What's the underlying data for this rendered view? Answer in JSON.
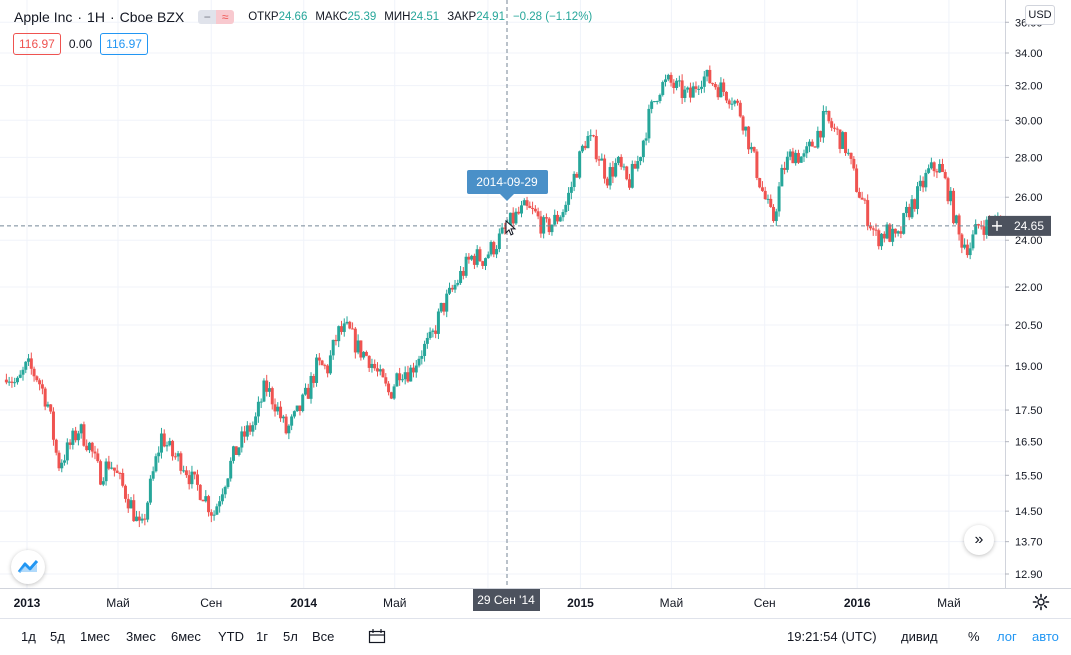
{
  "header": {
    "symbol": "Apple Inc",
    "interval": "1H",
    "exchange": "Cboe BZX",
    "open_label": "ОТКР",
    "open_value": "24.66",
    "high_label": "МАКС",
    "high_value": "25.39",
    "low_label": "МИН",
    "low_value": "24.51",
    "close_label": "ЗАКР",
    "close_value": "24.91",
    "change": "−0.28 (−1.12%)",
    "sell_price": "116.97",
    "spread": "0.00",
    "buy_price": "116.97",
    "currency": "USD"
  },
  "crosshair": {
    "date_tooltip": "2014-09-29",
    "time_label": "29 Сен '14",
    "price_label": "24.65",
    "price_value": 24.65
  },
  "bottom_toolbar": {
    "ranges": [
      "1д",
      "5д",
      "1мес",
      "3мес",
      "6мес",
      "YTD",
      "1г",
      "5л",
      "Все"
    ],
    "clock": "19:21:54 (UTC)",
    "divid": "дивид",
    "percent": "%",
    "log": "лог",
    "auto": "авто"
  },
  "icons": {
    "compare": "compare-pill-icon",
    "calendar": "goto-date-icon",
    "settings": "gear-icon",
    "scroll": "scroll-to-realtime-icon",
    "logo": "tradingview-logo-icon"
  },
  "colors": {
    "up": "#26a69a",
    "down": "#ef5350",
    "accent": "#2196f3",
    "crosshair_label": "#4a90c8"
  },
  "chart_data": {
    "type": "candlestick",
    "scale": "log",
    "y_ticks": [
      12.9,
      13.7,
      14.5,
      15.5,
      16.5,
      17.5,
      19.0,
      20.5,
      22.0,
      24.0,
      26.0,
      28.0,
      30.0,
      32.0,
      34.0,
      36.0
    ],
    "y_tick_labels": [
      "12.90",
      "13.70",
      "14.50",
      "15.50",
      "16.50",
      "17.50",
      "19.00",
      "20.50",
      "22.00",
      "24.00",
      "26.00",
      "28.00",
      "30.00",
      "32.00",
      "34.00",
      "36.00"
    ],
    "x_ticks": [
      "2013-01",
      "2013-05",
      "2013-09",
      "2014-01",
      "2014-05",
      "2014-09",
      "2015-01",
      "2015-05",
      "2015-09",
      "2016-01",
      "2016-05"
    ],
    "x_tick_labels": [
      "2013",
      "Май",
      "Сен",
      "2014",
      "Май",
      "Сен",
      "2015",
      "Май",
      "Сен",
      "2016",
      "Май"
    ],
    "x_tick_bold": [
      true,
      false,
      false,
      true,
      false,
      false,
      true,
      false,
      false,
      true,
      false
    ],
    "closes": [
      18.8,
      18.3,
      19.0,
      18.6,
      17.7,
      15.8,
      16.3,
      16.9,
      16.4,
      15.5,
      15.9,
      15.3,
      14.7,
      13.9,
      15.3,
      16.7,
      16.1,
      15.9,
      15.3,
      15.0,
      14.4,
      15.3,
      16.1,
      16.7,
      17.1,
      18.3,
      17.7,
      16.8,
      17.3,
      18.0,
      19.0,
      18.9,
      20.2,
      20.3,
      19.6,
      19.3,
      18.6,
      18.0,
      18.9,
      18.8,
      19.5,
      19.9,
      21.1,
      21.8,
      22.6,
      23.3,
      23.2,
      23.7,
      24.3,
      25.0,
      25.4,
      25.2,
      24.5,
      24.9,
      25.6,
      27.3,
      29.1,
      28.4,
      27.0,
      27.7,
      26.6,
      27.8,
      30.1,
      31.9,
      32.2,
      31.7,
      31.3,
      32.6,
      32.3,
      31.8,
      31.4,
      30.3,
      28.2,
      26.3,
      24.8,
      27.4,
      28.3,
      27.9,
      28.9,
      30.1,
      29.4,
      28.6,
      26.7,
      25.3,
      24.1,
      24.4,
      23.9,
      25.3,
      26.1,
      27.2,
      27.6,
      26.2,
      24.1,
      23.7,
      24.8,
      24.6,
      24.9
    ]
  }
}
